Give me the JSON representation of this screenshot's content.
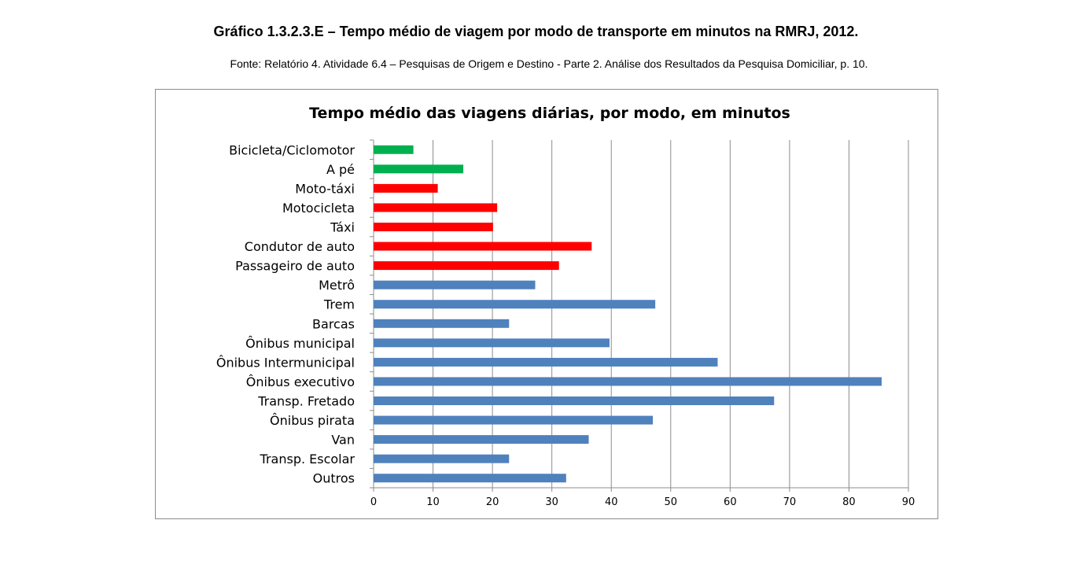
{
  "document": {
    "title": "Gráfico 1.3.2.3.E – Tempo médio de viagem por modo de transporte em minutos na RMRJ, 2012.",
    "source": "Fonte: Relatório 4. Atividade 6.4 – Pesquisas de Origem e Destino - Parte 2. Análise dos Resultados da Pesquisa Domiciliar, p. 10."
  },
  "colors": {
    "green": "#00b050",
    "red": "#ff0000",
    "blue": "#4f81bd",
    "grid": "#8c8c8c"
  },
  "chart_data": {
    "type": "bar",
    "orientation": "horizontal",
    "title": "Tempo médio das viagens diárias, por modo, em minutos",
    "xlabel": "",
    "ylabel": "",
    "xlim": [
      0,
      90
    ],
    "xticks": [
      0,
      10,
      20,
      30,
      40,
      50,
      60,
      70,
      80,
      90
    ],
    "grid": true,
    "legend": "none",
    "categories": [
      "Bicicleta/Ciclomotor",
      "A pé",
      "Moto-táxi",
      "Motocicleta",
      "Táxi",
      "Condutor de auto",
      "Passageiro de auto",
      "Metrô",
      "Trem",
      "Barcas",
      "Ônibus municipal",
      "Ônibus Intermunicipal",
      "Ônibus executivo",
      "Transp. Fretado",
      "Ônibus pirata",
      "Van",
      "Transp. Escolar",
      "Outros"
    ],
    "values": [
      6.7,
      15.1,
      10.8,
      20.8,
      20.1,
      36.7,
      31.2,
      27.2,
      47.4,
      22.8,
      39.7,
      57.9,
      85.5,
      67.4,
      47.0,
      36.2,
      22.8,
      32.4
    ],
    "bar_colors": [
      "#00b050",
      "#00b050",
      "#ff0000",
      "#ff0000",
      "#ff0000",
      "#ff0000",
      "#ff0000",
      "#4f81bd",
      "#4f81bd",
      "#4f81bd",
      "#4f81bd",
      "#4f81bd",
      "#4f81bd",
      "#4f81bd",
      "#4f81bd",
      "#4f81bd",
      "#4f81bd",
      "#4f81bd"
    ]
  }
}
